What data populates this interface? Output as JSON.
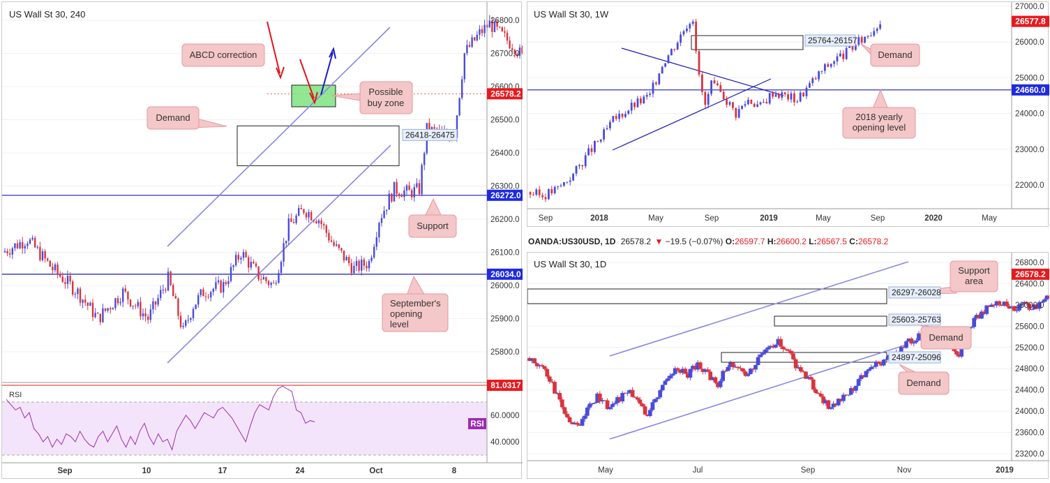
{
  "panels": {
    "h4": {
      "title": "US Wall St 30, 240",
      "yticks": [
        "26800.0",
        "26700.0",
        "26600.0",
        "26500.0",
        "26400.0",
        "26300.0",
        "26200.0",
        "26100.0",
        "26000.0",
        "25900.0",
        "25800.0"
      ],
      "xticks": [
        "Sep",
        "10",
        "17",
        "24",
        "Oct",
        "8"
      ],
      "price_tags": {
        "last": "26578.2",
        "support": "26272.0",
        "sept_open": "26034.0"
      },
      "zone_label": "26418-26475",
      "callouts": {
        "abcd": "ABCD correction",
        "buy_zone_1": "Possible",
        "buy_zone_2": "buy zone",
        "demand": "Demand",
        "support": "Support",
        "sept_1": "September's",
        "sept_2": "opening",
        "sept_3": "level"
      },
      "rsi": {
        "label": "RSI",
        "badge": "RSI",
        "yticks": [
          "60.0000",
          "40.0000"
        ],
        "level_tag": "81.0317"
      }
    },
    "weekly": {
      "title": "US Wall St 30, 1W",
      "yticks": [
        "27000.0",
        "26000.0",
        "25000.0",
        "24000.0",
        "23000.0",
        "22000.0"
      ],
      "xticks": [
        "Sep",
        "2018",
        "May",
        "Sep",
        "2019",
        "May",
        "Sep",
        "2020",
        "May"
      ],
      "price_tags": {
        "last": "26577.8",
        "yearly_open": "24660.0"
      },
      "zone_label": "25764-26157",
      "callouts": {
        "demand": "Demand",
        "yearly_1": "2018 yearly",
        "yearly_2": "opening level"
      }
    },
    "daily": {
      "symbol": "OANDA:US30USD, 1D",
      "last": "26578.2",
      "change": "−19.5 (−0.07%)",
      "o_label": "O:",
      "o": "26597.7",
      "h_label": "H:",
      "h": "26600.2",
      "l_label": "L:",
      "l": "26567.5",
      "c_label": "C:",
      "c": "26578.2",
      "title": "US Wall St 30, 1D",
      "yticks": [
        "26800.0",
        "26400.0",
        "26000.0",
        "25600.0",
        "25200.0",
        "24800.0",
        "24400.0",
        "24000.0",
        "23600.0",
        "23200.0"
      ],
      "xticks": [
        "May",
        "Jul",
        "Sep",
        "Nov",
        "2019"
      ],
      "price_tags": {
        "last": "26578.2"
      },
      "zones": [
        "26297-26028",
        "25603-25763",
        "24897-25096"
      ],
      "callouts": {
        "support_1": "Support",
        "support_2": "area",
        "demand_1": "Demand",
        "demand_2": "Demand"
      }
    }
  },
  "colors": {
    "up": "#4a4adb",
    "down": "#d8343f",
    "zone_fill": "#7fe37f",
    "callout_bg": "#f4c7c9",
    "callout_border": "#e6999d",
    "blue_line": "#1a1ab5",
    "channel": "#8a86e6",
    "rsi_line": "#9c2db1",
    "rsi_fill": "#f4e4fb",
    "tag_blue": "#1e2be0",
    "tag_red": "#e8191e"
  },
  "chart_data": [
    {
      "type": "candlestick",
      "title": "US Wall St 30, 240",
      "x_ticks": [
        "Sep",
        "10",
        "17",
        "24",
        "Oct",
        "8"
      ],
      "ylim": [
        25730,
        26880
      ],
      "last_price": 26578.2,
      "horizontal_levels": [
        {
          "name": "Support",
          "value": 26272.0
        },
        {
          "name": "September's opening level",
          "value": 26034.0
        }
      ],
      "zones": [
        {
          "name": "Demand",
          "range": [
            26418,
            26475
          ]
        },
        {
          "name": "Possible buy zone",
          "range": [
            26545,
            26600
          ]
        }
      ],
      "indicator": {
        "name": "RSI",
        "level": 81.0317,
        "last": 56
      }
    },
    {
      "type": "candlestick",
      "title": "US Wall St 30, 1W",
      "x_ticks": [
        "Sep",
        "2018",
        "May",
        "Sep",
        "2019",
        "May",
        "Sep",
        "2020",
        "May"
      ],
      "ylim": [
        21300,
        27200
      ],
      "last_price": 26577.8,
      "horizontal_levels": [
        {
          "name": "2018 yearly opening level",
          "value": 24660.0
        }
      ],
      "zones": [
        {
          "name": "Demand",
          "range": [
            25764,
            26157
          ]
        }
      ]
    },
    {
      "type": "candlestick",
      "title": "US Wall St 30, 1D",
      "x_ticks": [
        "May",
        "Jul",
        "Sep",
        "Nov",
        "2019"
      ],
      "ylim": [
        23100,
        26950
      ],
      "last_price": 26578.2,
      "zones": [
        {
          "name": "Support area",
          "range": [
            26028,
            26297
          ]
        },
        {
          "name": "Demand",
          "range": [
            25603,
            25763
          ]
        },
        {
          "name": "Demand",
          "range": [
            24897,
            25096
          ]
        }
      ]
    }
  ]
}
